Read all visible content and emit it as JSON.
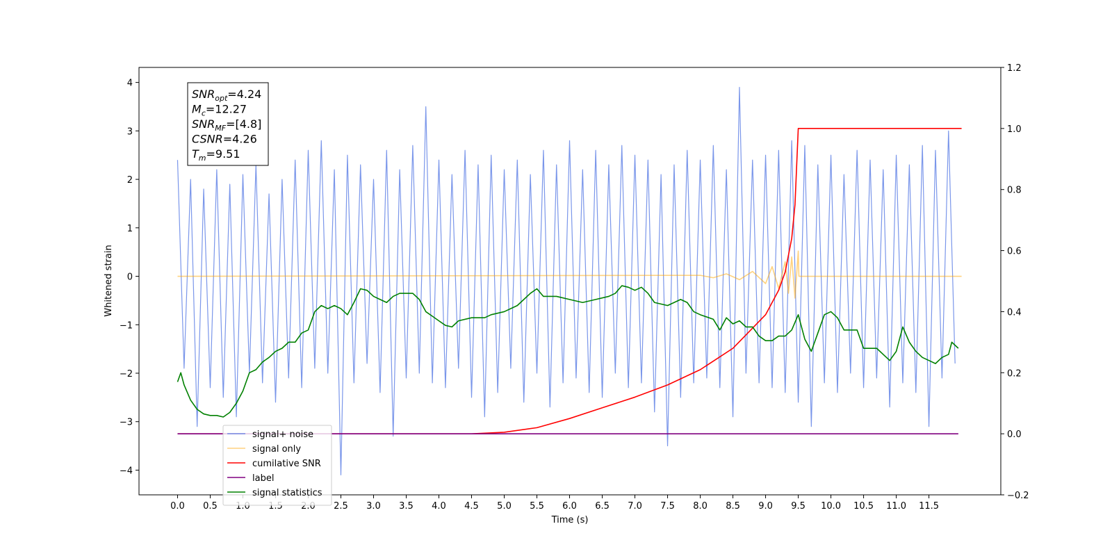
{
  "chart_data": {
    "type": "line",
    "xlabel": "Time (s)",
    "ylabel": "Whitened strain",
    "xlim": [
      -0.59,
      12.6
    ],
    "ylim": [
      -4.51,
      4.31
    ],
    "y2lim": [
      -0.2,
      1.2
    ],
    "xticks": [
      {
        "value": 0,
        "label": "0.0"
      },
      0.5,
      {
        "value": 1,
        "label": "1.0"
      },
      1.5,
      {
        "value": 2,
        "label": "2.0"
      },
      2.5,
      {
        "value": 3,
        "label": "3.0"
      },
      3.5,
      {
        "value": 4,
        "label": "4.0"
      },
      4.5,
      {
        "value": 5,
        "label": "5.0"
      },
      5.5,
      {
        "value": 6,
        "label": "6.0"
      },
      6.5,
      {
        "value": 7,
        "label": "7.0"
      },
      7.5,
      {
        "value": 8,
        "label": "8.0"
      },
      8.5,
      {
        "value": 9,
        "label": "9.0"
      },
      9.5,
      {
        "value": 10,
        "label": "10.0"
      },
      10.5,
      {
        "value": 11,
        "label": "11.0"
      },
      11.5
    ],
    "yticks": [
      {
        "value": -4,
        "label": "−4"
      },
      {
        "value": -3,
        "label": "−3"
      },
      {
        "value": -2,
        "label": "−2"
      },
      {
        "value": -1,
        "label": "−1"
      },
      0,
      1,
      2,
      3,
      4
    ],
    "y2ticks": [
      {
        "value": -0.2,
        "label": "−0.2"
      },
      {
        "value": 0,
        "label": "0.0"
      },
      0.2,
      0.4,
      0.6,
      0.8,
      {
        "value": 1,
        "label": "1.0"
      },
      1.2
    ],
    "legend": "lower left",
    "annotation": [
      {
        "base": "SNR",
        "sub": "opt",
        "text": "=4.24"
      },
      {
        "base": "M",
        "sub": "c",
        "text": "=12.27"
      },
      {
        "base": "SNR",
        "sub": "MF",
        "text": "=[4.8]"
      },
      {
        "base": "CSNR",
        "sub": "",
        "text": "=4.26"
      },
      {
        "base": "T",
        "sub": "m",
        "text": "=9.51"
      }
    ],
    "series": [
      {
        "name": "signal+ noise",
        "color": "#4169e1",
        "axis": "y",
        "x": [
          0,
          0.1,
          0.2,
          0.3,
          0.4,
          0.5,
          0.6,
          0.7,
          0.8,
          0.9,
          1,
          1.1,
          1.2,
          1.3,
          1.4,
          1.5,
          1.6,
          1.7,
          1.8,
          1.9,
          2,
          2.1,
          2.2,
          2.3,
          2.4,
          2.5,
          2.6,
          2.7,
          2.8,
          2.9,
          3,
          3.1,
          3.2,
          3.3,
          3.4,
          3.5,
          3.6,
          3.7,
          3.8,
          3.9,
          4,
          4.1,
          4.2,
          4.3,
          4.4,
          4.5,
          4.6,
          4.7,
          4.8,
          4.9,
          5,
          5.1,
          5.2,
          5.3,
          5.4,
          5.5,
          5.6,
          5.7,
          5.8,
          5.9,
          6,
          6.1,
          6.2,
          6.3,
          6.4,
          6.5,
          6.6,
          6.7,
          6.8,
          6.9,
          7,
          7.1,
          7.2,
          7.3,
          7.4,
          7.5,
          7.6,
          7.7,
          7.8,
          7.9,
          8,
          8.1,
          8.2,
          8.3,
          8.4,
          8.5,
          8.6,
          8.7,
          8.8,
          8.9,
          9,
          9.1,
          9.2,
          9.3,
          9.4,
          9.5,
          9.6,
          9.7,
          9.8,
          9.9,
          10,
          10.1,
          10.2,
          10.3,
          10.4,
          10.5,
          10.6,
          10.7,
          10.8,
          10.9,
          11,
          11.1,
          11.2,
          11.3,
          11.4,
          11.5,
          11.6,
          11.7,
          11.8,
          11.9
        ],
        "values": [
          2.4,
          -1.9,
          2.0,
          -3.1,
          1.8,
          -2.3,
          2.2,
          -2.5,
          1.9,
          -2.9,
          2.1,
          -2.0,
          2.3,
          -2.2,
          1.7,
          -2.6,
          2.0,
          -2.1,
          2.4,
          -2.3,
          2.6,
          -1.9,
          2.8,
          -2.0,
          2.2,
          -4.1,
          2.5,
          -2.2,
          2.3,
          -1.8,
          2.0,
          -2.4,
          2.6,
          -3.3,
          2.2,
          -2.1,
          2.7,
          -2.0,
          3.5,
          -2.2,
          2.4,
          -2.3,
          2.1,
          -1.9,
          2.6,
          -2.5,
          2.3,
          -2.9,
          2.5,
          -2.4,
          2.2,
          -1.9,
          2.4,
          -2.6,
          2.1,
          -2.0,
          2.6,
          -2.7,
          2.3,
          -2.2,
          2.8,
          -2.1,
          2.2,
          -2.4,
          2.6,
          -2.5,
          2.3,
          -2.0,
          2.7,
          -2.3,
          2.5,
          -2.2,
          2.4,
          -2.8,
          2.1,
          -3.5,
          2.3,
          -2.5,
          2.6,
          -2.2,
          2.4,
          -2.1,
          2.7,
          -2.3,
          2.2,
          -2.9,
          3.9,
          -2.0,
          2.4,
          -2.2,
          2.5,
          -2.3,
          2.6,
          -2.4,
          2.8,
          -2.6,
          2.7,
          -3.1,
          2.3,
          -2.2,
          2.5,
          -2.4,
          2.1,
          -2.0,
          2.6,
          -2.3,
          2.4,
          -2.1,
          2.2,
          -2.7,
          2.5,
          -2.2,
          2.3,
          -2.4,
          2.7,
          -3.1,
          2.6,
          -2.1,
          3.0,
          -1.8
        ]
      },
      {
        "name": "signal only",
        "color": "#ffa500",
        "axis": "y",
        "x": [
          0,
          8,
          8.2,
          8.4,
          8.6,
          8.8,
          9.0,
          9.1,
          9.2,
          9.3,
          9.35,
          9.4,
          9.45,
          9.5,
          9.51,
          12
        ],
        "values": [
          0,
          0.02,
          -0.03,
          0.05,
          -0.07,
          0.1,
          -0.15,
          0.2,
          -0.25,
          0.3,
          -0.35,
          0.4,
          -0.45,
          0.52,
          0,
          0
        ]
      },
      {
        "name": "cumilative SNR",
        "color": "#ff0000",
        "axis": "y2",
        "x": [
          0,
          4.5,
          5.0,
          5.5,
          6.0,
          6.5,
          7.0,
          7.5,
          8.0,
          8.5,
          9.0,
          9.2,
          9.3,
          9.4,
          9.45,
          9.5,
          12.0
        ],
        "values": [
          0,
          0,
          0.005,
          0.02,
          0.05,
          0.085,
          0.12,
          0.16,
          0.21,
          0.28,
          0.39,
          0.47,
          0.53,
          0.64,
          0.75,
          1.0,
          1.0
        ]
      },
      {
        "name": "label",
        "color": "#800080",
        "axis": "y2",
        "x": [
          0,
          11.95
        ],
        "values": [
          0,
          0
        ]
      },
      {
        "name": "signal statistics",
        "color": "#008000",
        "axis": "y2",
        "x": [
          0,
          0.05,
          0.1,
          0.2,
          0.3,
          0.4,
          0.5,
          0.6,
          0.7,
          0.8,
          0.9,
          1.0,
          1.1,
          1.2,
          1.3,
          1.4,
          1.5,
          1.6,
          1.7,
          1.8,
          1.9,
          2.0,
          2.1,
          2.2,
          2.3,
          2.4,
          2.5,
          2.6,
          2.7,
          2.8,
          2.9,
          3.0,
          3.1,
          3.2,
          3.3,
          3.4,
          3.5,
          3.6,
          3.7,
          3.8,
          3.9,
          4.0,
          4.1,
          4.2,
          4.3,
          4.5,
          4.7,
          4.8,
          5.0,
          5.2,
          5.3,
          5.4,
          5.5,
          5.6,
          5.8,
          6.0,
          6.2,
          6.4,
          6.6,
          6.7,
          6.8,
          6.9,
          7.0,
          7.1,
          7.2,
          7.3,
          7.5,
          7.6,
          7.7,
          7.8,
          7.9,
          8.0,
          8.2,
          8.3,
          8.4,
          8.5,
          8.6,
          8.7,
          8.8,
          8.9,
          9.0,
          9.1,
          9.2,
          9.3,
          9.4,
          9.5,
          9.6,
          9.7,
          9.8,
          9.9,
          10.0,
          10.1,
          10.2,
          10.4,
          10.5,
          10.7,
          10.8,
          10.9,
          11.0,
          11.1,
          11.2,
          11.3,
          11.4,
          11.5,
          11.6,
          11.7,
          11.8,
          11.85,
          11.95
        ],
        "values": [
          0.17,
          0.2,
          0.16,
          0.11,
          0.08,
          0.065,
          0.06,
          0.06,
          0.055,
          0.07,
          0.1,
          0.14,
          0.2,
          0.21,
          0.235,
          0.25,
          0.27,
          0.28,
          0.3,
          0.3,
          0.33,
          0.34,
          0.4,
          0.42,
          0.41,
          0.42,
          0.41,
          0.39,
          0.43,
          0.475,
          0.47,
          0.45,
          0.44,
          0.43,
          0.45,
          0.46,
          0.46,
          0.46,
          0.44,
          0.4,
          0.385,
          0.37,
          0.355,
          0.35,
          0.37,
          0.38,
          0.38,
          0.39,
          0.4,
          0.42,
          0.44,
          0.46,
          0.475,
          0.45,
          0.45,
          0.44,
          0.43,
          0.44,
          0.45,
          0.46,
          0.485,
          0.48,
          0.47,
          0.48,
          0.46,
          0.43,
          0.42,
          0.43,
          0.44,
          0.43,
          0.4,
          0.39,
          0.375,
          0.34,
          0.38,
          0.36,
          0.37,
          0.35,
          0.35,
          0.32,
          0.305,
          0.305,
          0.32,
          0.32,
          0.34,
          0.39,
          0.31,
          0.27,
          0.33,
          0.39,
          0.4,
          0.38,
          0.34,
          0.34,
          0.28,
          0.28,
          0.26,
          0.24,
          0.27,
          0.35,
          0.3,
          0.27,
          0.25,
          0.24,
          0.23,
          0.25,
          0.26,
          0.3,
          0.28
        ]
      }
    ]
  }
}
